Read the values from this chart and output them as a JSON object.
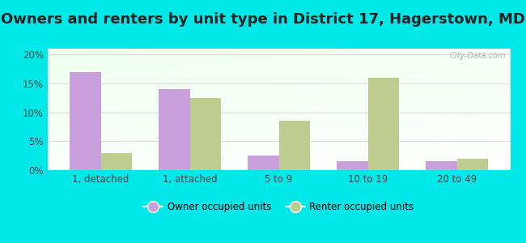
{
  "title": "Owners and renters by unit type in District 17, Hagerstown, MD",
  "categories": [
    "1, detached",
    "1, attached",
    "5 to 9",
    "10 to 19",
    "20 to 49"
  ],
  "owner_values": [
    17.0,
    14.0,
    2.5,
    1.5,
    1.5
  ],
  "renter_values": [
    3.0,
    12.5,
    8.5,
    16.0,
    2.0
  ],
  "owner_color": "#c9a0dc",
  "renter_color": "#bfcc8f",
  "background_color": "#00e8e8",
  "plot_bg_topleft": "#d6edd6",
  "plot_bg_white": "#ffffff",
  "ylim": [
    0,
    21
  ],
  "yticks": [
    0,
    5,
    10,
    15,
    20
  ],
  "ytick_labels": [
    "0%",
    "5%",
    "10%",
    "15%",
    "20%"
  ],
  "bar_width": 0.35,
  "legend_owner": "Owner occupied units",
  "legend_renter": "Renter occupied units",
  "title_fontsize": 13,
  "watermark": "City-Data.com",
  "grid_color": "#dddddd"
}
